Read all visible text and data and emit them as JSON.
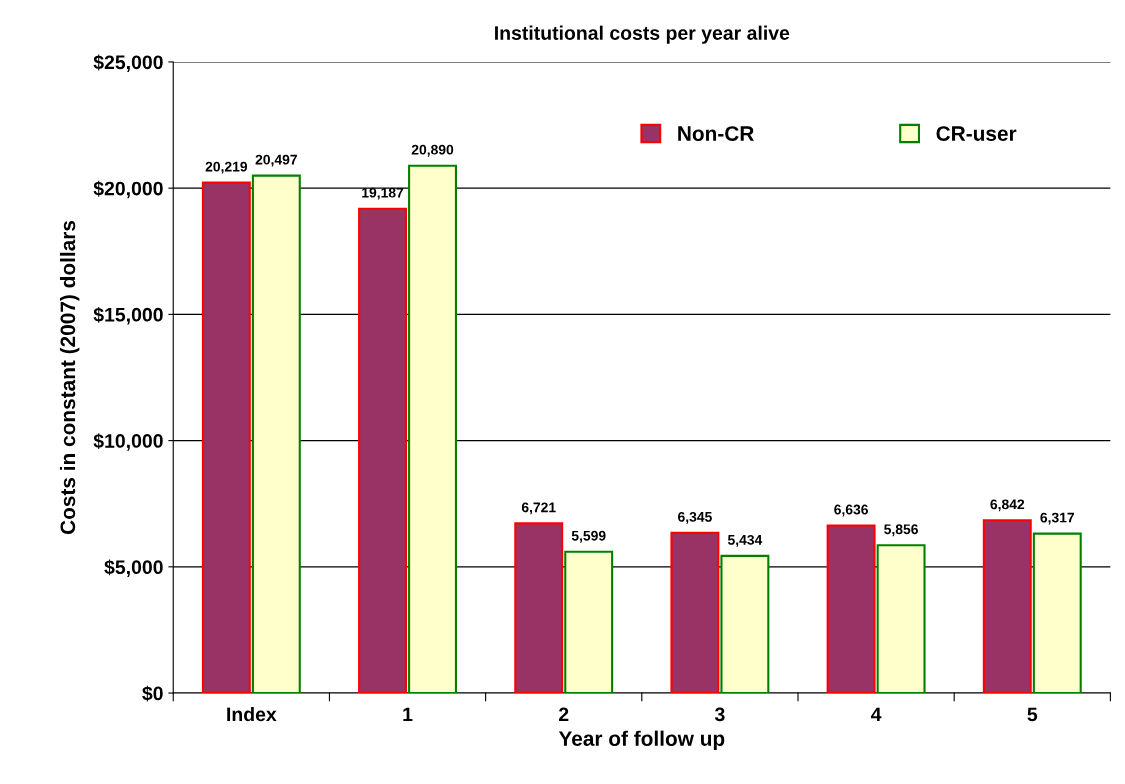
{
  "chart_data": {
    "type": "bar",
    "title": "Institutional costs per year alive",
    "xlabel": "Year of follow up",
    "ylabel": "Costs in constant (2007) dollars",
    "categories": [
      "Index",
      "1",
      "2",
      "3",
      "4",
      "5"
    ],
    "series": [
      {
        "name": "Non-CR",
        "color": "#993366",
        "values": [
          20219,
          19187,
          6721,
          6345,
          6636,
          6842
        ],
        "value_labels": [
          "20,219",
          "19,187",
          "6,721",
          "6,345",
          "6,636",
          "6,842"
        ]
      },
      {
        "name": "CR-user",
        "color": "#ffffcc",
        "values": [
          20497,
          20890,
          5599,
          5434,
          5856,
          6317
        ],
        "value_labels": [
          "20,497",
          "20,890",
          "5,599",
          "5,434",
          "5,856",
          "6,317"
        ]
      }
    ],
    "ylim": [
      0,
      25000
    ],
    "yticks": [
      {
        "value": 0,
        "label": "$0"
      },
      {
        "value": 5000,
        "label": "$5,000"
      },
      {
        "value": 10000,
        "label": "$10,000"
      },
      {
        "value": 15000,
        "label": "$15,000"
      },
      {
        "value": 20000,
        "label": "$20,000"
      },
      {
        "value": 25000,
        "label": "$25,000"
      }
    ],
    "grid": "y",
    "legend": "top right"
  }
}
